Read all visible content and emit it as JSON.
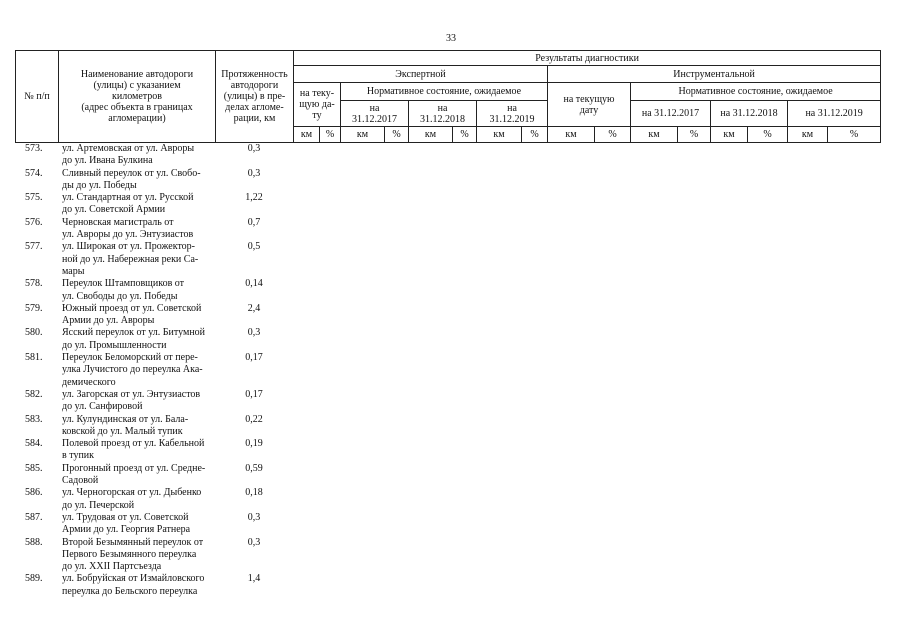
{
  "page_number": "33",
  "header": {
    "col_num": "№ п/п",
    "col_name": "Наименование автодороги\n(улицы) с указанием\nкилометров\n(адрес объекта в границах\nагломерации)",
    "col_length": "Протяженность\nавтодороги\n(улицы) в пре-\nделах агломе-\nрации, км",
    "results": "Результаты диагностики",
    "expert": "Экспертной",
    "instrumental": "Инструментальной",
    "expert_current": "на теку-\nщую да-\nту",
    "instr_current": "на текущую\nдату",
    "normative": "Нормативное состояние, ожидаемое",
    "expert_dates": [
      "на\n31.12.2017",
      "на\n31.12.2018",
      "на\n31.12.2019"
    ],
    "instr_dates": [
      "на 31.12.2017",
      "на 31.12.2018",
      "на 31.12.2019"
    ],
    "km": "км",
    "pct": "%"
  },
  "rows": [
    {
      "num": "573.",
      "name": "ул. Артемовская от ул. Авроры\nдо ул. Ивана Булкина",
      "length": "0,3"
    },
    {
      "num": "574.",
      "name": "Сливный переулок от ул. Свобо-\nды до ул. Победы",
      "length": "0,3"
    },
    {
      "num": "575.",
      "name": "ул. Стандартная от ул. Русской\nдо ул. Советской Армии",
      "length": "1,22"
    },
    {
      "num": "576.",
      "name": "Черновская магистраль от\nул. Авроры до ул. Энтузиастов",
      "length": "0,7"
    },
    {
      "num": "577.",
      "name": "ул. Широкая от ул. Прожектор-\nной до ул. Набережная реки Са-\nмары",
      "length": "0,5"
    },
    {
      "num": "578.",
      "name": "Переулок Штамповщиков от\nул. Свободы до ул. Победы",
      "length": "0,14"
    },
    {
      "num": "579.",
      "name": "Южный проезд от ул. Советской\nАрмии до ул. Авроры",
      "length": "2,4"
    },
    {
      "num": "580.",
      "name": "Ясский переулок от ул. Битумной\nдо ул. Промышленности",
      "length": "0,3"
    },
    {
      "num": "581.",
      "name": "Переулок Беломорский от пере-\nулка Лучистого до переулка Ака-\nдемического",
      "length": "0,17"
    },
    {
      "num": "582.",
      "name": "ул. Загорская от ул. Энтузиастов\nдо ул. Санфировой",
      "length": "0,17"
    },
    {
      "num": "583.",
      "name": "ул. Кулундинская от ул. Бала-\nковской до ул. Малый тупик",
      "length": "0,22"
    },
    {
      "num": "584.",
      "name": "Полевой проезд от ул. Кабельной\nв тупик",
      "length": "0,19"
    },
    {
      "num": "585.",
      "name": "Прогонный проезд от ул. Средне-\nСадовой",
      "length": "0,59"
    },
    {
      "num": "586.",
      "name": "ул. Черногорская от ул. Дыбенко\nдо ул. Печерской",
      "length": "0,18"
    },
    {
      "num": "587.",
      "name": "ул. Трудовая от ул. Советской\nАрмии до ул. Георгия Ратнера",
      "length": "0,3"
    },
    {
      "num": "588.",
      "name": "Второй Безымянный переулок от\nПервого Безымянного переулка\nдо ул. XXII Партсъезда",
      "length": "0,3"
    },
    {
      "num": "589.",
      "name": "ул. Бобруйская от Измайловского\nпереулка до Бельского переулка",
      "length": "1,4"
    }
  ]
}
